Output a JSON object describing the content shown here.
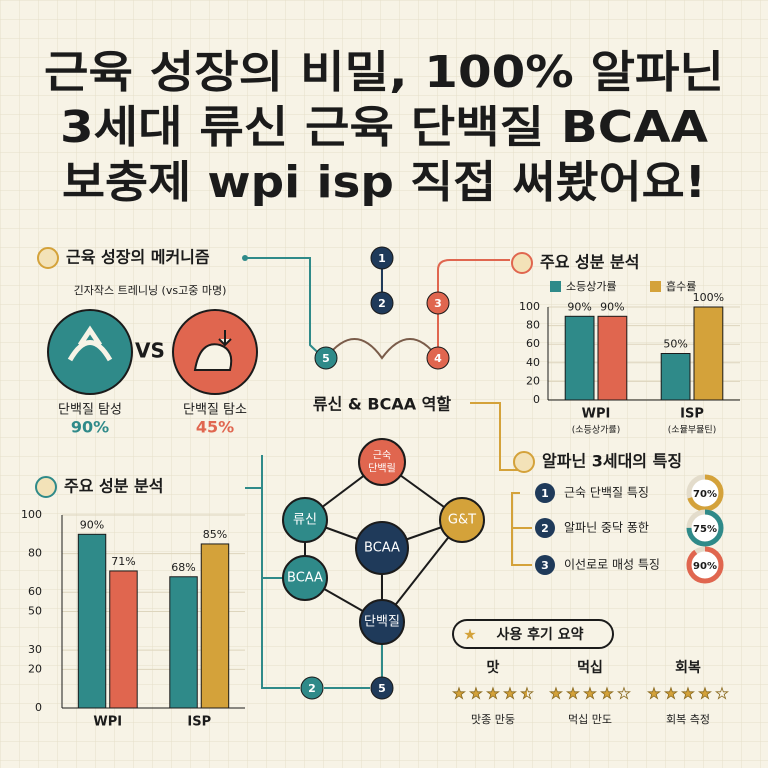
{
  "title_lines": [
    "근육 성장의 비밀, 100% 알파닌",
    "3세대 류신 근육 단백질 BCAA",
    "보충제 wpi isp 직접 써봤어요!"
  ],
  "mechanism": {
    "title": "근육 성장의 메커니즘",
    "subtitle": "긴자작스 트레니닝 (vs고중 마명)",
    "vs": "VS",
    "left": {
      "label": "단백질 탐성",
      "value": "90%"
    },
    "right": {
      "label": "단백질 탐소",
      "value": "45%"
    }
  },
  "chart_data": [
    {
      "type": "bar",
      "title": "주요 성분 분석",
      "categories": [
        "WPI",
        "ISP"
      ],
      "category_notes": [
        "(소등상가률)",
        "(소뮬부뮬틴)"
      ],
      "series": [
        {
          "name": "소등상가률",
          "color": "#2f8a89",
          "values": [
            90,
            50
          ],
          "value_labels": [
            "90%",
            "50%"
          ]
        },
        {
          "name": "흡수률",
          "color": "#d4a23a",
          "colors": [
            "#e0664f",
            "#d4a23a"
          ],
          "values": [
            90,
            100
          ],
          "value_labels": [
            "90%",
            "100%"
          ]
        }
      ],
      "ylim": [
        0,
        100
      ],
      "yticks": [
        0,
        20,
        40,
        60,
        80,
        100
      ],
      "legend": "top"
    },
    {
      "type": "bar",
      "title": "주요 성분 분석",
      "categories": [
        "WPI",
        "ISP"
      ],
      "series": [
        {
          "color": "#2f8a89",
          "values": [
            90,
            68
          ],
          "value_labels": [
            "90%",
            "68%"
          ]
        },
        {
          "color": "#e0664f",
          "colors": [
            "#e0664f",
            "#d4a23a"
          ],
          "values": [
            71,
            85
          ],
          "value_labels": [
            "71%",
            "85%"
          ]
        }
      ],
      "ylim": [
        0,
        100
      ],
      "yticks": [
        0,
        20,
        30,
        50,
        60,
        80,
        100
      ]
    }
  ],
  "flow": {
    "title": "류신 & BCAA 역할",
    "steps": [
      "1",
      "2",
      "3",
      "4",
      "5"
    ],
    "nodes": [
      [
        "근숙",
        "단백릴"
      ],
      [
        "류신"
      ],
      [
        "G&T"
      ],
      [
        "BCAA"
      ],
      [
        "BCAA"
      ],
      [
        "단백질"
      ]
    ],
    "bottom_steps": [
      "2",
      "5"
    ]
  },
  "features": {
    "title": "알파닌 3세대의 특징",
    "items": [
      {
        "num": "1",
        "text": "근숙 단백질 특징"
      },
      {
        "num": "2",
        "text": "알파닌 중닥 퐁한"
      },
      {
        "num": "3",
        "text": "이선로로 매성 특징"
      }
    ],
    "values": [
      70,
      75,
      90
    ],
    "value_labels": [
      "70%",
      "75%",
      "90%"
    ]
  },
  "reviews": {
    "title": "사용 후기 요약",
    "items": [
      {
        "label": "맛",
        "rating": 4.5,
        "caption": "맛종 만둥"
      },
      {
        "label": "먹십",
        "rating": 4,
        "caption": "먹십 만도"
      },
      {
        "label": "회복",
        "rating": 4,
        "caption": "회복 측정"
      }
    ]
  }
}
